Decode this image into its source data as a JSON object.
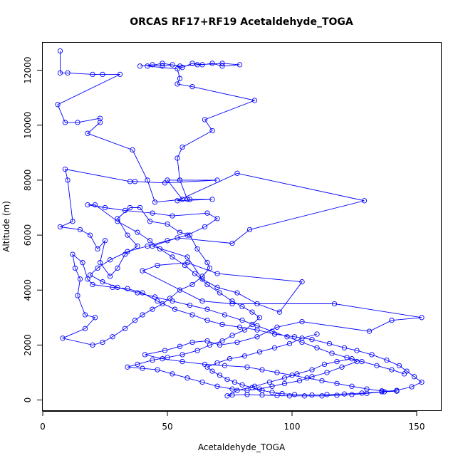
{
  "chart_data": {
    "type": "line",
    "title": "ORCAS RF17+RF19 Acetaldehyde_TOGA",
    "xlabel": "Acetaldehyde_TOGA",
    "ylabel": "Altitude (m)",
    "xlim": [
      0,
      160
    ],
    "ylim": [
      -400,
      13000
    ],
    "xticks": [
      0,
      50,
      100,
      150
    ],
    "yticks": [
      0,
      2000,
      4000,
      6000,
      8000,
      10000,
      12000
    ],
    "grid": false,
    "legend": "none",
    "line_color": "#0000ff",
    "marker": "open-circle",
    "series": [
      {
        "points": [
          [
            7,
            12700
          ],
          [
            7,
            11900
          ],
          [
            10,
            11900
          ],
          [
            20,
            11850
          ],
          [
            24,
            11850
          ],
          [
            31,
            11850
          ],
          [
            6,
            10750
          ],
          [
            9,
            10100
          ],
          [
            14,
            10100
          ],
          [
            23,
            10250
          ],
          [
            23,
            10100
          ],
          [
            18,
            9700
          ],
          [
            36,
            9100
          ],
          [
            42,
            8000
          ],
          [
            45,
            7200
          ],
          [
            56,
            7300
          ],
          [
            50,
            8000
          ],
          [
            55,
            8000
          ],
          [
            70,
            8000
          ],
          [
            49,
            7900
          ],
          [
            37,
            7950
          ],
          [
            35,
            7950
          ],
          [
            9,
            8400
          ],
          [
            10,
            8000
          ],
          [
            12,
            6500
          ],
          [
            7,
            6300
          ],
          [
            15,
            6200
          ],
          [
            19,
            6000
          ],
          [
            22,
            5500
          ],
          [
            25,
            5800
          ],
          [
            23,
            5000
          ],
          [
            27,
            4500
          ],
          [
            30,
            4800
          ],
          [
            33,
            5300
          ],
          [
            38,
            5600
          ],
          [
            34,
            6000
          ],
          [
            30,
            6600
          ],
          [
            35,
            7000
          ],
          [
            39,
            7000
          ],
          [
            43,
            6500
          ],
          [
            50,
            6400
          ],
          [
            55,
            6100
          ],
          [
            59,
            6000
          ],
          [
            62,
            5500
          ],
          [
            66,
            5000
          ],
          [
            67,
            4800
          ],
          [
            64,
            4500
          ],
          [
            60,
            4200
          ],
          [
            55,
            4000
          ],
          [
            51,
            3700
          ],
          [
            48,
            3500
          ],
          [
            44,
            3300
          ],
          [
            40,
            3100
          ],
          [
            37,
            2900
          ],
          [
            33,
            2600
          ],
          [
            28,
            2300
          ],
          [
            24,
            2100
          ],
          [
            20,
            2000
          ],
          [
            8,
            2250
          ],
          [
            17,
            2600
          ],
          [
            21,
            3000
          ],
          [
            17,
            3100
          ],
          [
            14,
            3800
          ],
          [
            15,
            4400
          ],
          [
            13,
            4800
          ],
          [
            12,
            5300
          ],
          [
            16,
            5000
          ],
          [
            18,
            4400
          ],
          [
            20,
            4200
          ],
          [
            28,
            4100
          ],
          [
            34,
            4050
          ],
          [
            40,
            3900
          ],
          [
            46,
            3600
          ],
          [
            53,
            3300
          ],
          [
            60,
            3100
          ],
          [
            66,
            2900
          ],
          [
            72,
            2750
          ],
          [
            79,
            2650
          ],
          [
            86,
            2550
          ],
          [
            93,
            2400
          ],
          [
            101,
            2300
          ],
          [
            108,
            2200
          ],
          [
            115,
            2050
          ],
          [
            121,
            1900
          ],
          [
            126,
            1800
          ],
          [
            132,
            1650
          ],
          [
            138,
            1450
          ],
          [
            143,
            1250
          ],
          [
            146,
            1050
          ],
          [
            149,
            850
          ],
          [
            152,
            650
          ],
          [
            148,
            480
          ],
          [
            142,
            350
          ],
          [
            136,
            300
          ],
          [
            130,
            240
          ],
          [
            124,
            200
          ],
          [
            118,
            170
          ],
          [
            112,
            150
          ],
          [
            105,
            150
          ],
          [
            99,
            150
          ],
          [
            94,
            160
          ],
          [
            88,
            180
          ],
          [
            82,
            200
          ],
          [
            76,
            180
          ],
          [
            74,
            150
          ],
          [
            78,
            350
          ],
          [
            85,
            500
          ],
          [
            91,
            650
          ],
          [
            97,
            800
          ],
          [
            102,
            950
          ],
          [
            108,
            1100
          ],
          [
            113,
            1300
          ],
          [
            118,
            1400
          ],
          [
            124,
            1500
          ],
          [
            126,
            1400
          ],
          [
            120,
            1200
          ],
          [
            114,
            1000
          ],
          [
            108,
            850
          ],
          [
            103,
            700
          ],
          [
            97,
            600
          ],
          [
            92,
            500
          ],
          [
            87,
            400
          ],
          [
            82,
            350
          ],
          [
            76,
            400
          ],
          [
            70,
            500
          ],
          [
            64,
            650
          ],
          [
            58,
            800
          ],
          [
            52,
            950
          ],
          [
            46,
            1100
          ],
          [
            40,
            1150
          ],
          [
            34,
            1200
          ],
          [
            38,
            1300
          ],
          [
            44,
            1450
          ],
          [
            50,
            1550
          ],
          [
            56,
            1650
          ],
          [
            62,
            1800
          ],
          [
            67,
            2000
          ],
          [
            72,
            2150
          ],
          [
            76,
            2350
          ],
          [
            81,
            2550
          ],
          [
            84,
            2750
          ],
          [
            87,
            3000
          ],
          [
            84,
            3200
          ],
          [
            80,
            3400
          ],
          [
            76,
            3600
          ],
          [
            71,
            3900
          ],
          [
            66,
            4200
          ],
          [
            61,
            4600
          ],
          [
            57,
            4900
          ],
          [
            52,
            5200
          ],
          [
            47,
            5500
          ],
          [
            43,
            5800
          ],
          [
            38,
            6100
          ],
          [
            30,
            6500
          ],
          [
            21,
            7100
          ],
          [
            18,
            7100
          ],
          [
            25,
            7000
          ],
          [
            33,
            6900
          ],
          [
            44,
            6800
          ],
          [
            52,
            6700
          ],
          [
            66,
            6800
          ],
          [
            70,
            6600
          ],
          [
            65,
            6300
          ],
          [
            58,
            6000
          ],
          [
            50,
            5800
          ],
          [
            42,
            5600
          ],
          [
            34,
            5400
          ],
          [
            27,
            5100
          ],
          [
            22,
            4800
          ],
          [
            19,
            4550
          ],
          [
            24,
            4300
          ],
          [
            30,
            4100
          ],
          [
            38,
            3900
          ],
          [
            45,
            3750
          ],
          [
            52,
            3600
          ],
          [
            59,
            3450
          ],
          [
            66,
            3300
          ],
          [
            73,
            3100
          ],
          [
            80,
            2900
          ],
          [
            86,
            2700
          ],
          [
            92,
            2500
          ],
          [
            98,
            2300
          ],
          [
            104,
            2100
          ],
          [
            110,
            1900
          ],
          [
            116,
            1700
          ],
          [
            122,
            1550
          ],
          [
            128,
            1400
          ],
          [
            134,
            1250
          ],
          [
            140,
            1100
          ],
          [
            145,
            950
          ]
        ]
      },
      {
        "points": [
          [
            39,
            12150
          ],
          [
            44,
            12200
          ],
          [
            48,
            12150
          ],
          [
            52,
            12200
          ],
          [
            56,
            12100
          ],
          [
            60,
            12250
          ],
          [
            64,
            12200
          ],
          [
            68,
            12250
          ],
          [
            72,
            12150
          ],
          [
            79,
            12200
          ],
          [
            72,
            12250
          ],
          [
            62,
            12200
          ],
          [
            55,
            12150
          ],
          [
            48,
            12250
          ],
          [
            42,
            12150
          ],
          [
            54,
            12050
          ],
          [
            55,
            11700
          ],
          [
            54,
            11500
          ],
          [
            60,
            11400
          ],
          [
            85,
            10900
          ],
          [
            65,
            10200
          ],
          [
            68,
            9800
          ],
          [
            56,
            9200
          ],
          [
            54,
            8800
          ],
          [
            55,
            8000
          ],
          [
            58,
            7300
          ],
          [
            59,
            7300
          ],
          [
            68,
            7300
          ],
          [
            54,
            7250
          ],
          [
            78,
            8250
          ],
          [
            129,
            7250
          ],
          [
            83,
            6200
          ],
          [
            76,
            5700
          ],
          [
            54,
            5900
          ],
          [
            44,
            5600
          ],
          [
            58,
            5200
          ],
          [
            64,
            4400
          ],
          [
            70,
            4100
          ],
          [
            78,
            3900
          ],
          [
            86,
            3500
          ],
          [
            95,
            3200
          ],
          [
            104,
            4300
          ],
          [
            70,
            4600
          ],
          [
            58,
            5000
          ],
          [
            46,
            4900
          ],
          [
            40,
            4700
          ],
          [
            64,
            3600
          ],
          [
            76,
            3500
          ],
          [
            117,
            3500
          ],
          [
            152,
            3000
          ],
          [
            140,
            2900
          ],
          [
            131,
            2500
          ],
          [
            104,
            2850
          ],
          [
            94,
            2650
          ],
          [
            86,
            2300
          ],
          [
            78,
            2100
          ],
          [
            71,
            2000
          ],
          [
            66,
            2150
          ],
          [
            60,
            2100
          ],
          [
            55,
            1950
          ],
          [
            49,
            1800
          ],
          [
            41,
            1650
          ],
          [
            48,
            1500
          ],
          [
            56,
            1400
          ],
          [
            65,
            1300
          ],
          [
            73,
            1250
          ],
          [
            82,
            1200
          ],
          [
            88,
            1100
          ],
          [
            94,
            1000
          ],
          [
            100,
            900
          ],
          [
            106,
            800
          ],
          [
            112,
            700
          ],
          [
            118,
            600
          ],
          [
            124,
            500
          ],
          [
            130,
            400
          ],
          [
            136,
            330
          ],
          [
            142,
            320
          ],
          [
            137,
            300
          ],
          [
            128,
            250
          ],
          [
            121,
            220
          ],
          [
            114,
            200
          ],
          [
            108,
            180
          ],
          [
            101,
            200
          ],
          [
            96,
            230
          ],
          [
            92,
            280
          ],
          [
            88,
            350
          ],
          [
            84,
            450
          ],
          [
            80,
            550
          ],
          [
            77,
            650
          ],
          [
            74,
            750
          ],
          [
            71,
            900
          ],
          [
            68,
            1050
          ],
          [
            66,
            1200
          ],
          [
            70,
            1350
          ],
          [
            75,
            1500
          ],
          [
            81,
            1600
          ],
          [
            87,
            1750
          ],
          [
            93,
            1900
          ],
          [
            99,
            2050
          ],
          [
            104,
            2250
          ],
          [
            110,
            2400
          ]
        ]
      }
    ]
  }
}
